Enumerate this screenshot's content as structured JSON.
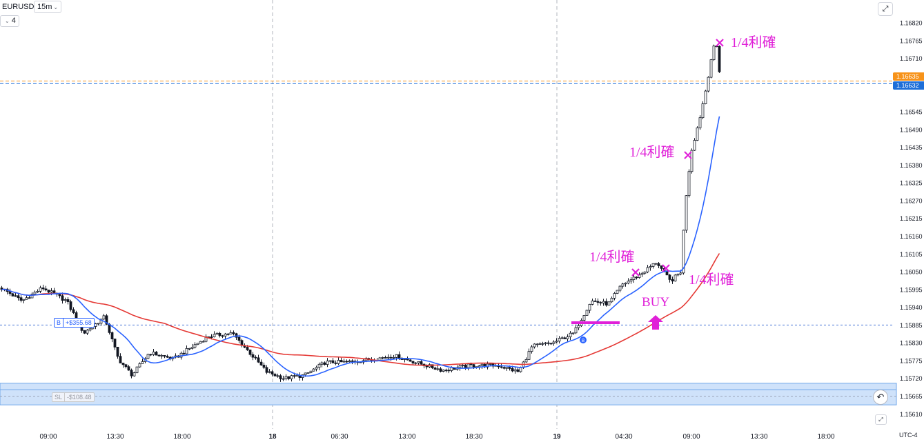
{
  "toolbar": {
    "symbol": "EURUSD",
    "interval": "15m",
    "indicator_count": "4"
  },
  "price_axis": {
    "ticks": [
      "1.16820",
      "1.16765",
      "1.16710",
      "1.16655",
      "1.16545",
      "1.16490",
      "1.16435",
      "1.16380",
      "1.16325",
      "1.16270",
      "1.16215",
      "1.16160",
      "1.16105",
      "1.16050",
      "1.15995",
      "1.15940",
      "1.15885",
      "1.15830",
      "1.15775",
      "1.15720",
      "1.15665",
      "1.15610"
    ],
    "ask_tag": "1.16635",
    "bid_tag": "1.16632",
    "ask_color": "#f7931a",
    "bid_color": "#1e6fd9"
  },
  "time_axis": {
    "ticks": [
      {
        "label": "09:00",
        "bold": false
      },
      {
        "label": "13:30",
        "bold": false
      },
      {
        "label": "18:00",
        "bold": false
      },
      {
        "label": "18",
        "bold": true
      },
      {
        "label": "06:30",
        "bold": false
      },
      {
        "label": "13:00",
        "bold": false
      },
      {
        "label": "18:30",
        "bold": false
      },
      {
        "label": "19",
        "bold": true
      },
      {
        "label": "04:30",
        "bold": false
      },
      {
        "label": "09:00",
        "bold": false
      },
      {
        "label": "13:30",
        "bold": false
      },
      {
        "label": "18:00",
        "bold": false
      }
    ],
    "timezone": "UTC-4"
  },
  "position": {
    "side": "B",
    "pnl": "+$355.68",
    "stop_tag": "SL",
    "stop_pnl": "-$108.48"
  },
  "annotations": {
    "take_profit": "1/4利確",
    "buy": "BUY",
    "color": "#e020d8"
  },
  "chart_data": {
    "type": "candlestick",
    "symbol": "EURUSD",
    "interval": "15m",
    "ylim": [
      1.15585,
      1.16848
    ],
    "entry_price": 1.15885,
    "stop_zone": [
      1.15638,
      1.15705
    ],
    "moving_averages": [
      {
        "color": "#2962ff",
        "kind": "fast"
      },
      {
        "color": "#e53935",
        "kind": "slow"
      }
    ],
    "take_profit_marks": 4
  },
  "icons": {
    "collapse": "chevron-down-icon",
    "fullscreen": "collapse-arrows-icon",
    "scroll": "scroll-to-realtime-icon",
    "settings": "chart-settings-icon",
    "buy_arrow": "up-arrow-icon",
    "trade_marker": "buy-marker-icon",
    "take_profit": "x-mark-icon"
  }
}
